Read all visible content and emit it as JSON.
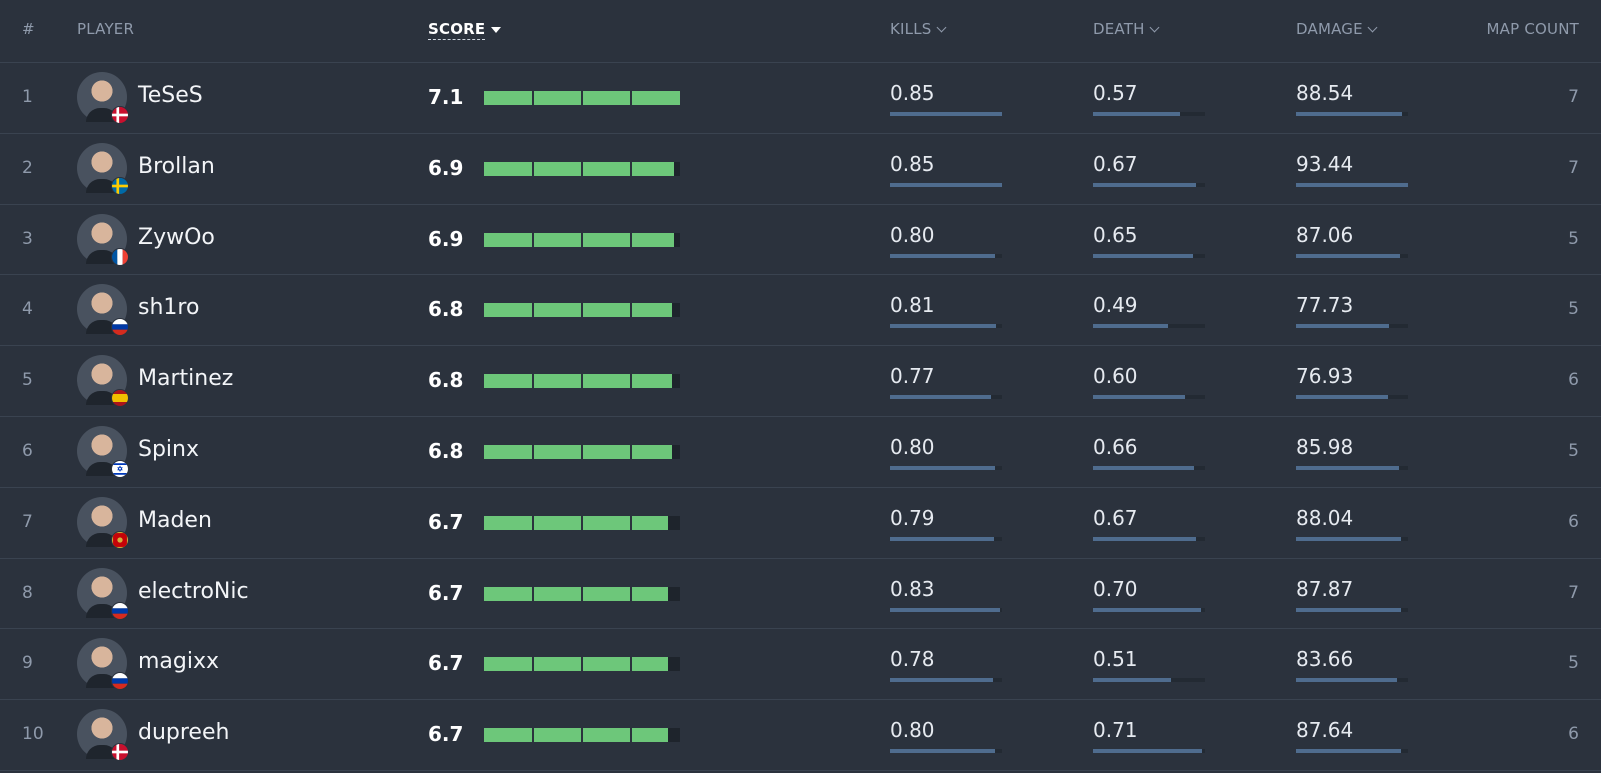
{
  "headers": {
    "rank": "#",
    "player": "PLAYER",
    "score": "SCORE",
    "kills": "KILLS",
    "death": "DEATH",
    "damage": "DAMAGE",
    "map_count": "MAP COUNT"
  },
  "colors": {
    "score_fill": "#6dc77a",
    "metric_fill": "#4f6c8e",
    "background": "#2b323d"
  },
  "players": [
    {
      "rank": "1",
      "name": "TeSeS",
      "flag": "denmark",
      "score": "7.1",
      "score_fill": 1.0,
      "kills": "0.85",
      "kills_fill": 1.0,
      "death": "0.57",
      "death_fill": 0.78,
      "damage": "88.54",
      "damage_fill": 0.95,
      "maps": "7"
    },
    {
      "rank": "2",
      "name": "Brollan",
      "flag": "sweden",
      "score": "6.9",
      "score_fill": 0.97,
      "kills": "0.85",
      "kills_fill": 1.0,
      "death": "0.67",
      "death_fill": 0.92,
      "damage": "93.44",
      "damage_fill": 1.0,
      "maps": "7"
    },
    {
      "rank": "3",
      "name": "ZywOo",
      "flag": "france",
      "score": "6.9",
      "score_fill": 0.97,
      "kills": "0.80",
      "kills_fill": 0.94,
      "death": "0.65",
      "death_fill": 0.89,
      "damage": "87.06",
      "damage_fill": 0.93,
      "maps": "5"
    },
    {
      "rank": "4",
      "name": "sh1ro",
      "flag": "russia",
      "score": "6.8",
      "score_fill": 0.96,
      "kills": "0.81",
      "kills_fill": 0.95,
      "death": "0.49",
      "death_fill": 0.67,
      "damage": "77.73",
      "damage_fill": 0.83,
      "maps": "5"
    },
    {
      "rank": "5",
      "name": "Martinez",
      "flag": "spain",
      "score": "6.8",
      "score_fill": 0.96,
      "kills": "0.77",
      "kills_fill": 0.9,
      "death": "0.60",
      "death_fill": 0.82,
      "damage": "76.93",
      "damage_fill": 0.82,
      "maps": "6"
    },
    {
      "rank": "6",
      "name": "Spinx",
      "flag": "israel",
      "score": "6.8",
      "score_fill": 0.96,
      "kills": "0.80",
      "kills_fill": 0.94,
      "death": "0.66",
      "death_fill": 0.9,
      "damage": "85.98",
      "damage_fill": 0.92,
      "maps": "5"
    },
    {
      "rank": "7",
      "name": "Maden",
      "flag": "montenegro",
      "score": "6.7",
      "score_fill": 0.94,
      "kills": "0.79",
      "kills_fill": 0.93,
      "death": "0.67",
      "death_fill": 0.92,
      "damage": "88.04",
      "damage_fill": 0.94,
      "maps": "6"
    },
    {
      "rank": "8",
      "name": "electroNic",
      "flag": "russia",
      "score": "6.7",
      "score_fill": 0.94,
      "kills": "0.83",
      "kills_fill": 0.98,
      "death": "0.70",
      "death_fill": 0.96,
      "damage": "87.87",
      "damage_fill": 0.94,
      "maps": "7"
    },
    {
      "rank": "9",
      "name": "magixx",
      "flag": "russia",
      "score": "6.7",
      "score_fill": 0.94,
      "kills": "0.78",
      "kills_fill": 0.92,
      "death": "0.51",
      "death_fill": 0.7,
      "damage": "83.66",
      "damage_fill": 0.9,
      "maps": "5"
    },
    {
      "rank": "10",
      "name": "dupreeh",
      "flag": "denmark",
      "score": "6.7",
      "score_fill": 0.94,
      "kills": "0.80",
      "kills_fill": 0.94,
      "death": "0.71",
      "death_fill": 0.97,
      "damage": "87.64",
      "damage_fill": 0.94,
      "maps": "6"
    }
  ]
}
